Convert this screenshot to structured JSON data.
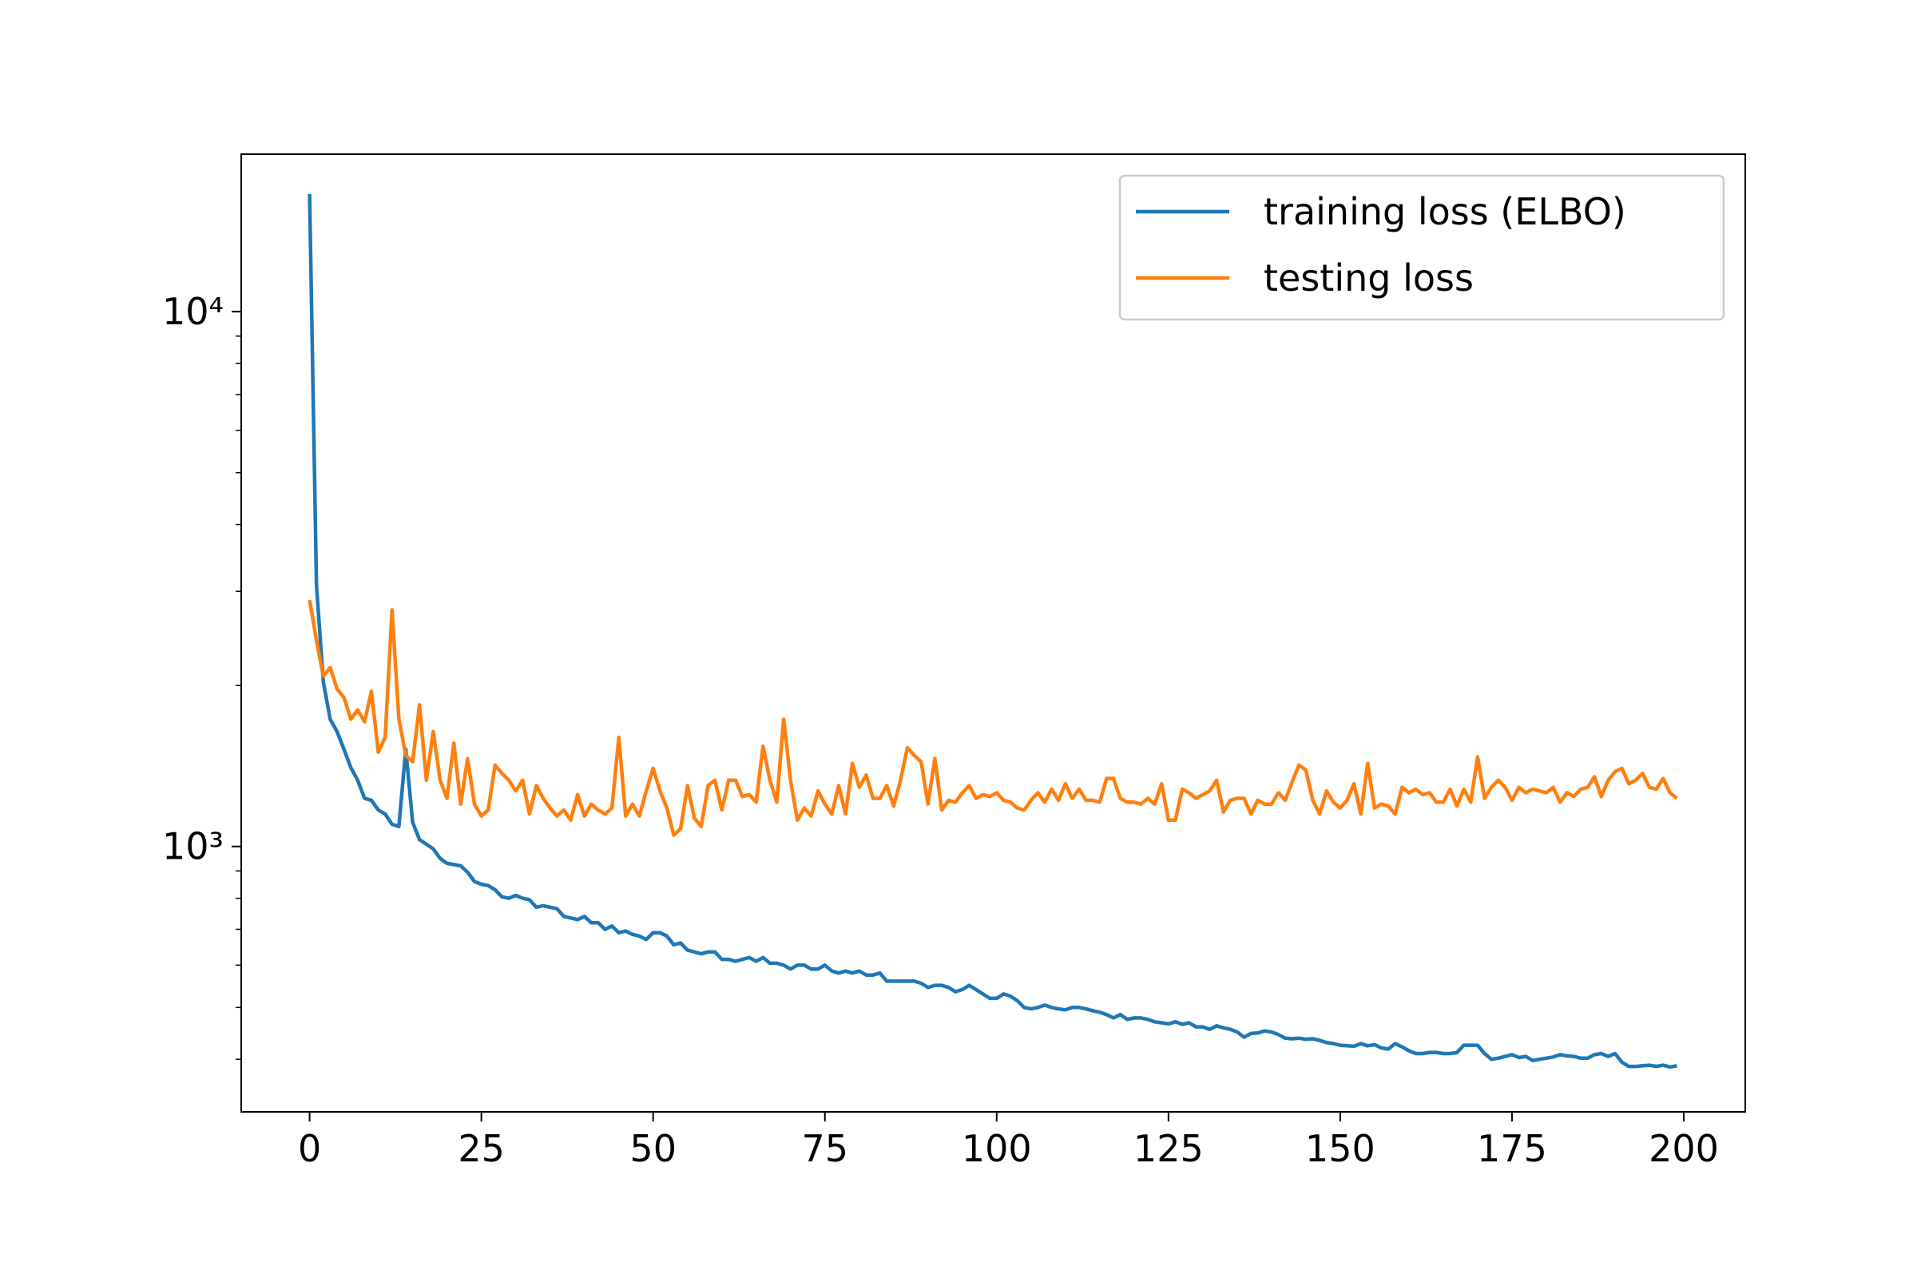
{
  "chart_data": {
    "type": "line",
    "yscale": "log",
    "legend": "upper right",
    "x": [
      0,
      1,
      2,
      3,
      4,
      5,
      6,
      7,
      8,
      9,
      10,
      11,
      12,
      13,
      14,
      15,
      16,
      17,
      18,
      19,
      20,
      21,
      22,
      23,
      24,
      25,
      26,
      27,
      28,
      29,
      30,
      31,
      32,
      33,
      34,
      35,
      36,
      37,
      38,
      39,
      40,
      41,
      42,
      43,
      44,
      45,
      46,
      47,
      48,
      49,
      50,
      51,
      52,
      53,
      54,
      55,
      56,
      57,
      58,
      59,
      60,
      61,
      62,
      63,
      64,
      65,
      66,
      67,
      68,
      69,
      70,
      71,
      72,
      73,
      74,
      75,
      76,
      77,
      78,
      79,
      80,
      81,
      82,
      83,
      84,
      85,
      86,
      87,
      88,
      89,
      90,
      91,
      92,
      93,
      94,
      95,
      96,
      97,
      98,
      99,
      100,
      101,
      102,
      103,
      104,
      105,
      106,
      107,
      108,
      109,
      110,
      111,
      112,
      113,
      114,
      115,
      116,
      117,
      118,
      119,
      120,
      121,
      122,
      123,
      124,
      125,
      126,
      127,
      128,
      129,
      130,
      131,
      132,
      133,
      134,
      135,
      136,
      137,
      138,
      139,
      140,
      141,
      142,
      143,
      144,
      145,
      146,
      147,
      148,
      149,
      150,
      151,
      152,
      153,
      154,
      155,
      156,
      157,
      158,
      159,
      160,
      161,
      162,
      163,
      164,
      165,
      166,
      167,
      168,
      169,
      170,
      171,
      172,
      173,
      174,
      175,
      176,
      177,
      178,
      179,
      180,
      181,
      182,
      183,
      184,
      185,
      186,
      187,
      188,
      189,
      190,
      191,
      192,
      193,
      194,
      195,
      196,
      197,
      198,
      199
    ],
    "series": [
      {
        "name": "training loss (ELBO)",
        "color": "#1f77b4",
        "values": [
          16600,
          3080,
          2030,
          1730,
          1640,
          1520,
          1405,
          1330,
          1230,
          1220,
          1170,
          1150,
          1100,
          1090,
          1520,
          1110,
          1030,
          1010,
          990,
          950,
          930,
          925,
          920,
          895,
          860,
          850,
          845,
          830,
          805,
          800,
          810,
          800,
          795,
          770,
          775,
          770,
          765,
          740,
          735,
          730,
          740,
          720,
          720,
          700,
          710,
          690,
          695,
          685,
          680,
          670,
          690,
          690,
          680,
          655,
          660,
          640,
          635,
          630,
          635,
          635,
          615,
          615,
          610,
          615,
          620,
          610,
          620,
          605,
          605,
          600,
          590,
          600,
          600,
          590,
          590,
          600,
          585,
          580,
          585,
          580,
          585,
          575,
          575,
          580,
          560,
          560,
          560,
          560,
          560,
          555,
          545,
          550,
          550,
          545,
          535,
          540,
          550,
          540,
          530,
          520,
          520,
          530,
          525,
          515,
          500,
          497,
          500,
          505,
          500,
          497,
          495,
          500,
          500,
          497,
          493,
          490,
          485,
          478,
          485,
          475,
          478,
          478,
          475,
          470,
          468,
          466,
          470,
          465,
          468,
          460,
          460,
          455,
          462,
          458,
          455,
          450,
          440,
          447,
          448,
          452,
          450,
          445,
          438,
          437,
          438,
          436,
          437,
          434,
          430,
          428,
          425,
          424,
          423,
          428,
          424,
          426,
          420,
          418,
          428,
          422,
          415,
          410,
          410,
          412,
          412,
          410,
          410,
          412,
          425,
          425,
          425,
          410,
          400,
          402,
          405,
          408,
          403,
          405,
          398,
          400,
          402,
          404,
          408,
          406,
          405,
          402,
          402,
          408,
          410,
          405,
          410,
          395,
          388,
          388,
          389,
          390,
          388,
          390,
          387,
          389
        ]
      },
      {
        "name": "testing loss",
        "color": "#ff7f0e",
        "values": [
          2890,
          2430,
          2080,
          2160,
          1970,
          1900,
          1730,
          1800,
          1710,
          1950,
          1500,
          1600,
          2770,
          1730,
          1480,
          1440,
          1840,
          1330,
          1640,
          1330,
          1230,
          1560,
          1200,
          1460,
          1200,
          1140,
          1170,
          1420,
          1370,
          1330,
          1270,
          1330,
          1150,
          1300,
          1230,
          1180,
          1140,
          1170,
          1120,
          1250,
          1140,
          1200,
          1170,
          1150,
          1180,
          1600,
          1140,
          1200,
          1140,
          1270,
          1400,
          1270,
          1180,
          1050,
          1080,
          1300,
          1130,
          1090,
          1300,
          1330,
          1170,
          1330,
          1330,
          1240,
          1250,
          1210,
          1540,
          1330,
          1210,
          1730,
          1330,
          1120,
          1180,
          1140,
          1270,
          1200,
          1150,
          1300,
          1150,
          1430,
          1290,
          1360,
          1230,
          1230,
          1300,
          1190,
          1330,
          1530,
          1480,
          1440,
          1200,
          1460,
          1170,
          1220,
          1210,
          1260,
          1300,
          1230,
          1250,
          1240,
          1260,
          1220,
          1210,
          1180,
          1170,
          1220,
          1260,
          1210,
          1280,
          1220,
          1310,
          1230,
          1280,
          1220,
          1220,
          1210,
          1340,
          1340,
          1230,
          1210,
          1210,
          1200,
          1230,
          1200,
          1310,
          1120,
          1120,
          1280,
          1260,
          1230,
          1250,
          1270,
          1330,
          1160,
          1220,
          1230,
          1230,
          1150,
          1220,
          1200,
          1200,
          1260,
          1220,
          1320,
          1420,
          1390,
          1220,
          1150,
          1270,
          1210,
          1180,
          1220,
          1310,
          1150,
          1430,
          1180,
          1200,
          1190,
          1150,
          1290,
          1260,
          1280,
          1250,
          1260,
          1210,
          1210,
          1280,
          1190,
          1280,
          1210,
          1470,
          1230,
          1290,
          1330,
          1290,
          1220,
          1290,
          1260,
          1280,
          1270,
          1260,
          1290,
          1210,
          1260,
          1240,
          1280,
          1290,
          1350,
          1240,
          1330,
          1380,
          1400,
          1310,
          1330,
          1370,
          1290,
          1280,
          1340,
          1260,
          1230
        ]
      }
    ],
    "xlim": [
      -9.95,
      208.95
    ],
    "xticks": [
      0,
      25,
      50,
      75,
      100,
      125,
      150,
      175,
      200
    ],
    "ylim": [
      319,
      19700
    ],
    "yticks": [
      {
        "value": 1000,
        "label": "10³"
      },
      {
        "value": 10000,
        "label": "10⁴"
      }
    ],
    "yminor_ticks": [
      400,
      500,
      600,
      700,
      800,
      900,
      2000,
      3000,
      4000,
      5000,
      6000,
      7000,
      8000,
      9000
    ]
  }
}
